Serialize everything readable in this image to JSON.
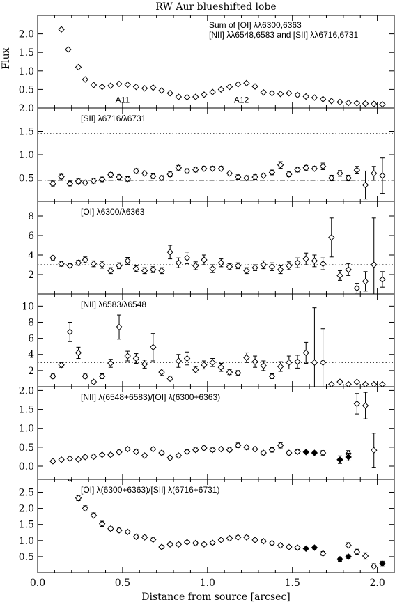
{
  "chart_data": {
    "type": "scatter",
    "title": "RW Aur blueshifted lobe",
    "xlabel": "Distance from source [arcsec]",
    "ylabel": "Flux",
    "xlim": [
      0.0,
      2.1
    ],
    "x_ticks": [
      "0.0",
      "0.5",
      "1.0",
      "1.5",
      "2.0"
    ],
    "panels": [
      {
        "id": "sum",
        "label_lines": [
          "Sum of [OI] λλ6300,6363",
          "[NII] λλ6548,6583 and [SII] λλ6716,6731"
        ],
        "ylim": [
          0.0,
          2.5
        ],
        "y_ticks": [
          0.5,
          1.0,
          1.5,
          2.0
        ],
        "y_tick_labels": [
          "0.5",
          "1.0",
          "1.5",
          "2.0"
        ],
        "annotations": [
          {
            "text": "A11",
            "x": 0.5,
            "y": 0.22
          },
          {
            "text": "A12",
            "x": 1.2,
            "y": 0.22
          }
        ],
        "series": [
          {
            "marker": "open-diamond",
            "x": [
              0.14,
              0.18,
              0.24,
              0.28,
              0.33,
              0.38,
              0.43,
              0.48,
              0.53,
              0.58,
              0.63,
              0.68,
              0.73,
              0.78,
              0.83,
              0.88,
              0.93,
              0.98,
              1.03,
              1.08,
              1.13,
              1.18,
              1.23,
              1.28,
              1.33,
              1.38,
              1.43,
              1.48,
              1.53,
              1.58,
              1.63,
              1.68,
              1.73,
              1.78,
              1.83,
              1.88,
              1.93,
              1.98,
              2.03
            ],
            "y": [
              2.12,
              1.58,
              1.1,
              0.77,
              0.62,
              0.57,
              0.6,
              0.65,
              0.63,
              0.57,
              0.53,
              0.55,
              0.47,
              0.4,
              0.3,
              0.29,
              0.3,
              0.36,
              0.43,
              0.5,
              0.57,
              0.64,
              0.67,
              0.58,
              0.42,
              0.4,
              0.38,
              0.4,
              0.35,
              0.31,
              0.28,
              0.24,
              0.19,
              0.16,
              0.14,
              0.13,
              0.12,
              0.11,
              0.1
            ]
          }
        ]
      },
      {
        "id": "sii",
        "label_lines": [
          "[SII] λ6716/λ6731"
        ],
        "ylim": [
          0.0,
          2.0
        ],
        "y_ticks": [
          0.5,
          1.0,
          1.5,
          2.0
        ],
        "y_tick_labels": [
          "0.5",
          "1.0",
          "1.5",
          "2.0"
        ],
        "reference_lines": [
          {
            "y": 1.45,
            "style": "dotted"
          },
          {
            "y": 0.45,
            "style": "dashdot"
          }
        ],
        "series": [
          {
            "marker": "open-diamond",
            "x": [
              0.09,
              0.14,
              0.19,
              0.24,
              0.28,
              0.33,
              0.38,
              0.43,
              0.48,
              0.53,
              0.58,
              0.63,
              0.68,
              0.73,
              0.78,
              0.83,
              0.88,
              0.93,
              0.98,
              1.03,
              1.08,
              1.13,
              1.18,
              1.23,
              1.28,
              1.33,
              1.38,
              1.43,
              1.48,
              1.53,
              1.58,
              1.63,
              1.68,
              1.73,
              1.78,
              1.83,
              1.88,
              1.93,
              1.98,
              2.03
            ],
            "y": [
              0.38,
              0.53,
              0.38,
              0.43,
              0.4,
              0.44,
              0.47,
              0.57,
              0.52,
              0.48,
              0.65,
              0.6,
              0.54,
              0.5,
              0.58,
              0.72,
              0.65,
              0.68,
              0.7,
              0.7,
              0.7,
              0.6,
              0.52,
              0.5,
              0.52,
              0.55,
              0.62,
              0.78,
              0.58,
              0.68,
              0.72,
              0.7,
              0.75,
              0.5,
              0.6,
              0.5,
              0.67,
              0.35,
              0.6,
              0.55
            ],
            "err": [
              0.05,
              0.05,
              0.05,
              0.05,
              0.05,
              0.05,
              0.05,
              0.05,
              0.05,
              0.05,
              0.05,
              0.05,
              0.05,
              0.05,
              0.05,
              0.05,
              0.05,
              0.05,
              0.05,
              0.05,
              0.05,
              0.05,
              0.05,
              0.05,
              0.05,
              0.05,
              0.05,
              0.07,
              0.05,
              0.05,
              0.05,
              0.05,
              0.07,
              0.06,
              0.06,
              0.06,
              0.08,
              0.3,
              0.15,
              0.38
            ]
          }
        ]
      },
      {
        "id": "oi",
        "label_lines": [
          "[OI] λ6300/λ6363"
        ],
        "ylim": [
          0.0,
          9.5
        ],
        "y_ticks": [
          2,
          4,
          6,
          8
        ],
        "y_tick_labels": [
          "2",
          "4",
          "6",
          "8"
        ],
        "reference_lines": [
          {
            "y": 3.0,
            "style": "dotted"
          }
        ],
        "series": [
          {
            "marker": "open-diamond",
            "x": [
              0.09,
              0.14,
              0.19,
              0.24,
              0.28,
              0.33,
              0.38,
              0.43,
              0.48,
              0.53,
              0.58,
              0.63,
              0.68,
              0.73,
              0.78,
              0.83,
              0.88,
              0.93,
              0.98,
              1.03,
              1.08,
              1.13,
              1.18,
              1.23,
              1.28,
              1.33,
              1.38,
              1.43,
              1.48,
              1.53,
              1.58,
              1.63,
              1.68,
              1.73,
              1.78,
              1.83,
              1.88,
              1.93,
              1.98,
              2.03
            ],
            "y": [
              3.7,
              3.1,
              2.9,
              3.2,
              3.5,
              3.1,
              3.0,
              2.4,
              2.9,
              3.4,
              2.6,
              2.4,
              2.5,
              2.4,
              4.3,
              3.2,
              3.7,
              2.9,
              3.5,
              2.6,
              3.2,
              2.8,
              2.9,
              2.4,
              2.7,
              3.0,
              2.8,
              2.5,
              2.9,
              3.2,
              3.6,
              3.4,
              3.1,
              5.8,
              1.9,
              2.5,
              0.6,
              1.3,
              3.0,
              1.5
            ],
            "err": [
              0.2,
              0.25,
              0.2,
              0.25,
              0.3,
              0.3,
              0.35,
              0.3,
              0.3,
              0.35,
              0.3,
              0.3,
              0.3,
              0.3,
              0.7,
              0.5,
              0.6,
              0.4,
              0.5,
              0.4,
              0.4,
              0.3,
              0.3,
              0.3,
              0.3,
              0.4,
              0.4,
              0.4,
              0.4,
              0.5,
              0.6,
              0.6,
              0.6,
              2.0,
              0.5,
              0.6,
              0.5,
              1.0,
              4.8,
              0.8
            ]
          }
        ]
      },
      {
        "id": "nii",
        "label_lines": [
          "[NII] λ6583/λ6548"
        ],
        "ylim": [
          0.0,
          11.5
        ],
        "y_ticks": [
          2,
          4,
          6,
          8,
          10
        ],
        "y_tick_labels": [
          "2",
          "4",
          "6",
          "8",
          "10"
        ],
        "reference_lines": [
          {
            "y": 3.0,
            "style": "dotted"
          }
        ],
        "series": [
          {
            "marker": "open-diamond",
            "x": [
              0.09,
              0.14,
              0.19,
              0.24,
              0.28,
              0.33,
              0.38,
              0.43,
              0.48,
              0.53,
              0.58,
              0.63,
              0.68,
              0.73,
              0.78,
              0.83,
              0.88,
              0.93,
              0.98,
              1.03,
              1.08,
              1.13,
              1.18,
              1.23,
              1.28,
              1.33,
              1.38,
              1.43,
              1.48,
              1.53,
              1.58,
              1.63,
              1.68,
              1.73,
              1.78,
              1.83,
              1.88,
              1.93,
              1.98,
              2.03
            ],
            "y": [
              1.3,
              2.7,
              6.8,
              4.2,
              1.3,
              0.6,
              1.3,
              2.9,
              7.4,
              3.8,
              3.5,
              2.8,
              4.9,
              1.8,
              1.0,
              3.2,
              3.5,
              2.1,
              2.7,
              3.0,
              2.4,
              1.8,
              1.7,
              3.6,
              3.1,
              2.6,
              1.3,
              2.5,
              3.0,
              3.1,
              4.2,
              3.0,
              3.0,
              0.3,
              0.6,
              0.3,
              0.6,
              0.3,
              0.3,
              0.3
            ],
            "err": [
              0.25,
              0.3,
              1.2,
              0.7,
              0.25,
              0.2,
              0.3,
              0.5,
              1.5,
              0.6,
              0.6,
              0.5,
              1.7,
              0.4,
              0.2,
              0.8,
              0.8,
              0.4,
              0.5,
              0.5,
              0.5,
              0.3,
              0.3,
              0.6,
              0.7,
              0.6,
              0.3,
              0.6,
              0.8,
              0.8,
              1.3,
              6.8,
              4.2,
              0.1,
              0.1,
              0.1,
              0.1,
              0.1,
              0.1,
              0.1
            ]
          }
        ]
      },
      {
        "id": "nii-oi",
        "label_lines": [
          "[NII] λ(6548+6583)/[OI] λ(6300+6363)"
        ],
        "ylim": [
          -0.35,
          2.1
        ],
        "y_ticks": [
          0.0,
          0.5,
          1.0,
          1.5,
          2.0
        ],
        "y_tick_labels": [
          "0.0",
          "0.5",
          "1.0",
          "1.5",
          "2.0"
        ],
        "series": [
          {
            "marker": "open-diamond",
            "x": [
              0.09,
              0.14,
              0.19,
              0.24,
              0.28,
              0.33,
              0.38,
              0.43,
              0.48,
              0.53,
              0.58,
              0.63,
              0.68,
              0.73,
              0.78,
              0.83,
              0.88,
              0.93,
              0.98,
              1.03,
              1.08,
              1.13,
              1.18,
              1.23,
              1.28,
              1.33,
              1.38,
              1.43,
              1.48,
              1.53,
              1.68,
              1.83,
              1.88,
              1.93,
              1.98
            ],
            "y": [
              0.13,
              0.17,
              0.2,
              0.18,
              0.24,
              0.25,
              0.3,
              0.3,
              0.37,
              0.45,
              0.38,
              0.28,
              0.45,
              0.35,
              0.22,
              0.28,
              0.38,
              0.43,
              0.48,
              0.43,
              0.45,
              0.43,
              0.55,
              0.5,
              0.45,
              0.35,
              0.43,
              0.55,
              0.35,
              0.38,
              0.35,
              0.33,
              1.65,
              1.6,
              0.42
            ],
            "err": [
              0.03,
              0.03,
              0.03,
              0.03,
              0.04,
              0.04,
              0.04,
              0.04,
              0.05,
              0.05,
              0.05,
              0.04,
              0.05,
              0.05,
              0.04,
              0.04,
              0.05,
              0.05,
              0.05,
              0.05,
              0.05,
              0.05,
              0.06,
              0.06,
              0.05,
              0.05,
              0.06,
              0.07,
              0.05,
              0.05,
              0.06,
              0.08,
              0.27,
              0.35,
              0.45
            ]
          },
          {
            "marker": "filled-diamond",
            "x": [
              1.58,
              1.63,
              1.78,
              1.83
            ],
            "y": [
              0.37,
              0.35,
              0.17,
              0.24
            ],
            "err": [
              0.03,
              0.03,
              0.1,
              0.1
            ]
          }
        ]
      },
      {
        "id": "oi-sii",
        "label_lines": [
          "[OI] λ(6300+6363)/[SII] λ(6716+6731)"
        ],
        "ylim": [
          0.0,
          2.9
        ],
        "y_ticks": [
          0.5,
          1.0,
          1.5,
          2.0,
          2.5
        ],
        "y_tick_labels": [
          "0.5",
          "1.0",
          "1.5",
          "2.0",
          "2.5"
        ],
        "series": [
          {
            "marker": "open-diamond",
            "x": [
              0.19,
              0.24,
              0.28,
              0.33,
              0.38,
              0.43,
              0.48,
              0.53,
              0.58,
              0.63,
              0.68,
              0.73,
              0.78,
              0.83,
              0.88,
              0.93,
              0.98,
              1.03,
              1.08,
              1.13,
              1.18,
              1.23,
              1.28,
              1.33,
              1.38,
              1.43,
              1.48,
              1.53,
              1.68,
              1.83,
              1.88,
              1.93,
              1.98
            ],
            "y": [
              2.92,
              2.32,
              2.0,
              1.78,
              1.52,
              1.37,
              1.32,
              1.27,
              1.12,
              1.1,
              1.03,
              0.8,
              0.88,
              0.88,
              0.95,
              0.92,
              0.88,
              0.93,
              1.02,
              1.07,
              1.1,
              1.1,
              1.02,
              0.98,
              0.92,
              0.85,
              0.8,
              0.78,
              0.6,
              0.85,
              0.65,
              0.52,
              0.2
            ],
            "err": [
              0.05,
              0.08,
              0.08,
              0.08,
              0.08,
              0.06,
              0.06,
              0.06,
              0.05,
              0.05,
              0.05,
              0.05,
              0.05,
              0.05,
              0.05,
              0.05,
              0.05,
              0.05,
              0.05,
              0.05,
              0.05,
              0.05,
              0.05,
              0.05,
              0.05,
              0.05,
              0.05,
              0.05,
              0.06,
              0.08,
              0.08,
              0.1,
              0.08
            ]
          },
          {
            "marker": "filled-diamond",
            "x": [
              1.58,
              1.63,
              1.78,
              1.83,
              2.03
            ],
            "y": [
              0.75,
              0.78,
              0.42,
              0.5,
              0.28
            ],
            "err": [
              0.04,
              0.04,
              0.06,
              0.06,
              0.08
            ]
          }
        ]
      }
    ]
  }
}
